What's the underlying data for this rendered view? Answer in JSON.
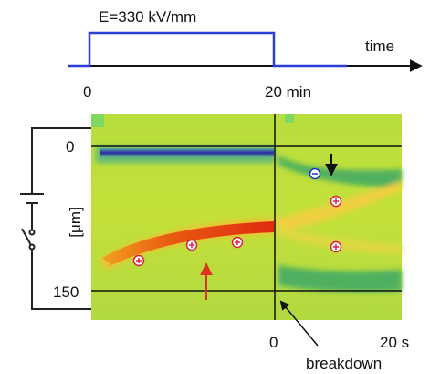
{
  "header": {
    "field_label": "E=330 kV/mm",
    "time_axis_label": "time",
    "time_ticks": [
      "0",
      "20 min"
    ]
  },
  "plot": {
    "y_ticks": [
      "0",
      "150"
    ],
    "y_unit": "[μm]",
    "x_ticks": [
      "0",
      "20 s"
    ],
    "annotation": "breakdown"
  }
}
